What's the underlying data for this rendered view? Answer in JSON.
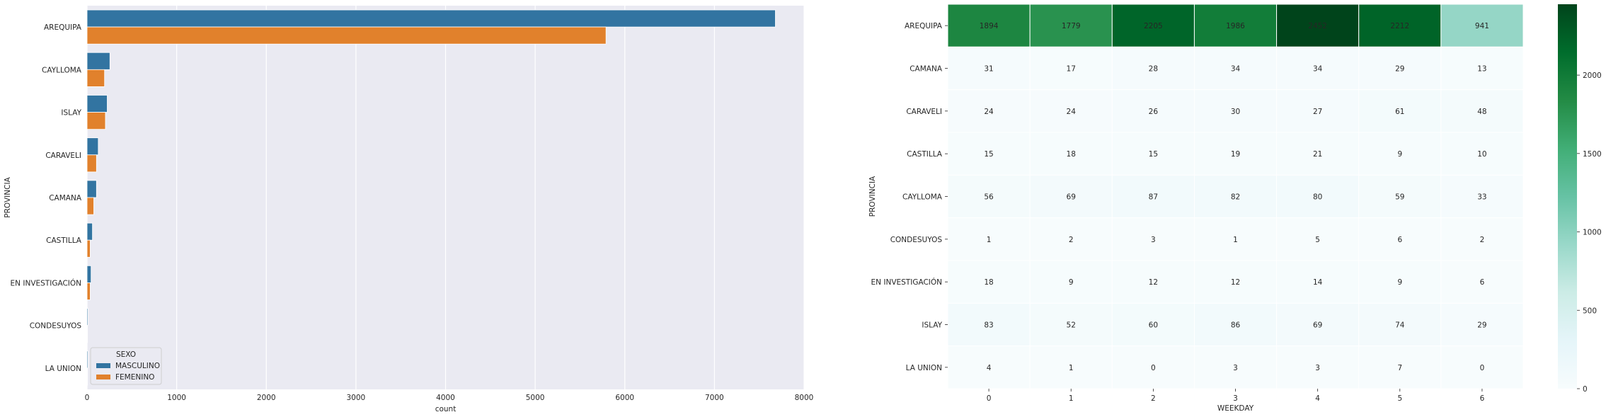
{
  "chart_data": [
    {
      "type": "bar",
      "orientation": "horizontal",
      "xlabel": "count",
      "ylabel": "PROVINCIA",
      "xlim": [
        0,
        8000
      ],
      "xticks": [
        0,
        1000,
        2000,
        3000,
        4000,
        5000,
        6000,
        7000,
        8000
      ],
      "grid": true,
      "categories": [
        "AREQUIPA",
        "CAYLLOMA",
        "ISLAY",
        "CARAVELI",
        "CAMANA",
        "CASTILLA",
        "EN INVESTIGACIÓN",
        "CONDESUYOS",
        "LA UNION"
      ],
      "legend": {
        "title": "SEXO",
        "placement": "lower-left"
      },
      "series": [
        {
          "name": "MASCULINO",
          "color": "#3274a1",
          "values": [
            7680,
            255,
            225,
            125,
            105,
            60,
            45,
            10,
            10
          ]
        },
        {
          "name": "FEMENINO",
          "color": "#e1812c",
          "values": [
            5790,
            195,
            205,
            105,
            75,
            35,
            35,
            5,
            5
          ]
        }
      ]
    },
    {
      "type": "heatmap",
      "xlabel": "WEEKDAY",
      "ylabel": "PROVINCIA",
      "x": [
        "0",
        "1",
        "2",
        "3",
        "4",
        "5",
        "6"
      ],
      "y": [
        "AREQUIPA",
        "CAMANA",
        "CARAVELI",
        "CASTILLA",
        "CAYLLOMA",
        "CONDESUYOS",
        "EN INVESTIGACIÓN",
        "ISLAY",
        "LA UNION"
      ],
      "values": [
        [
          1894,
          1779,
          2205,
          1986,
          2452,
          2212,
          941
        ],
        [
          31,
          17,
          28,
          34,
          34,
          29,
          13
        ],
        [
          24,
          24,
          26,
          30,
          27,
          61,
          48
        ],
        [
          15,
          18,
          15,
          19,
          21,
          9,
          10
        ],
        [
          56,
          69,
          87,
          82,
          80,
          59,
          33
        ],
        [
          1,
          2,
          3,
          1,
          5,
          6,
          2
        ],
        [
          18,
          9,
          12,
          12,
          14,
          9,
          6
        ],
        [
          83,
          52,
          60,
          86,
          69,
          74,
          29
        ],
        [
          4,
          1,
          0,
          3,
          3,
          7,
          0
        ]
      ],
      "colormap": "BuGn",
      "vmin": 0,
      "vmax": 2452,
      "colorbar_ticks": [
        0,
        500,
        1000,
        1500,
        2000
      ]
    }
  ]
}
